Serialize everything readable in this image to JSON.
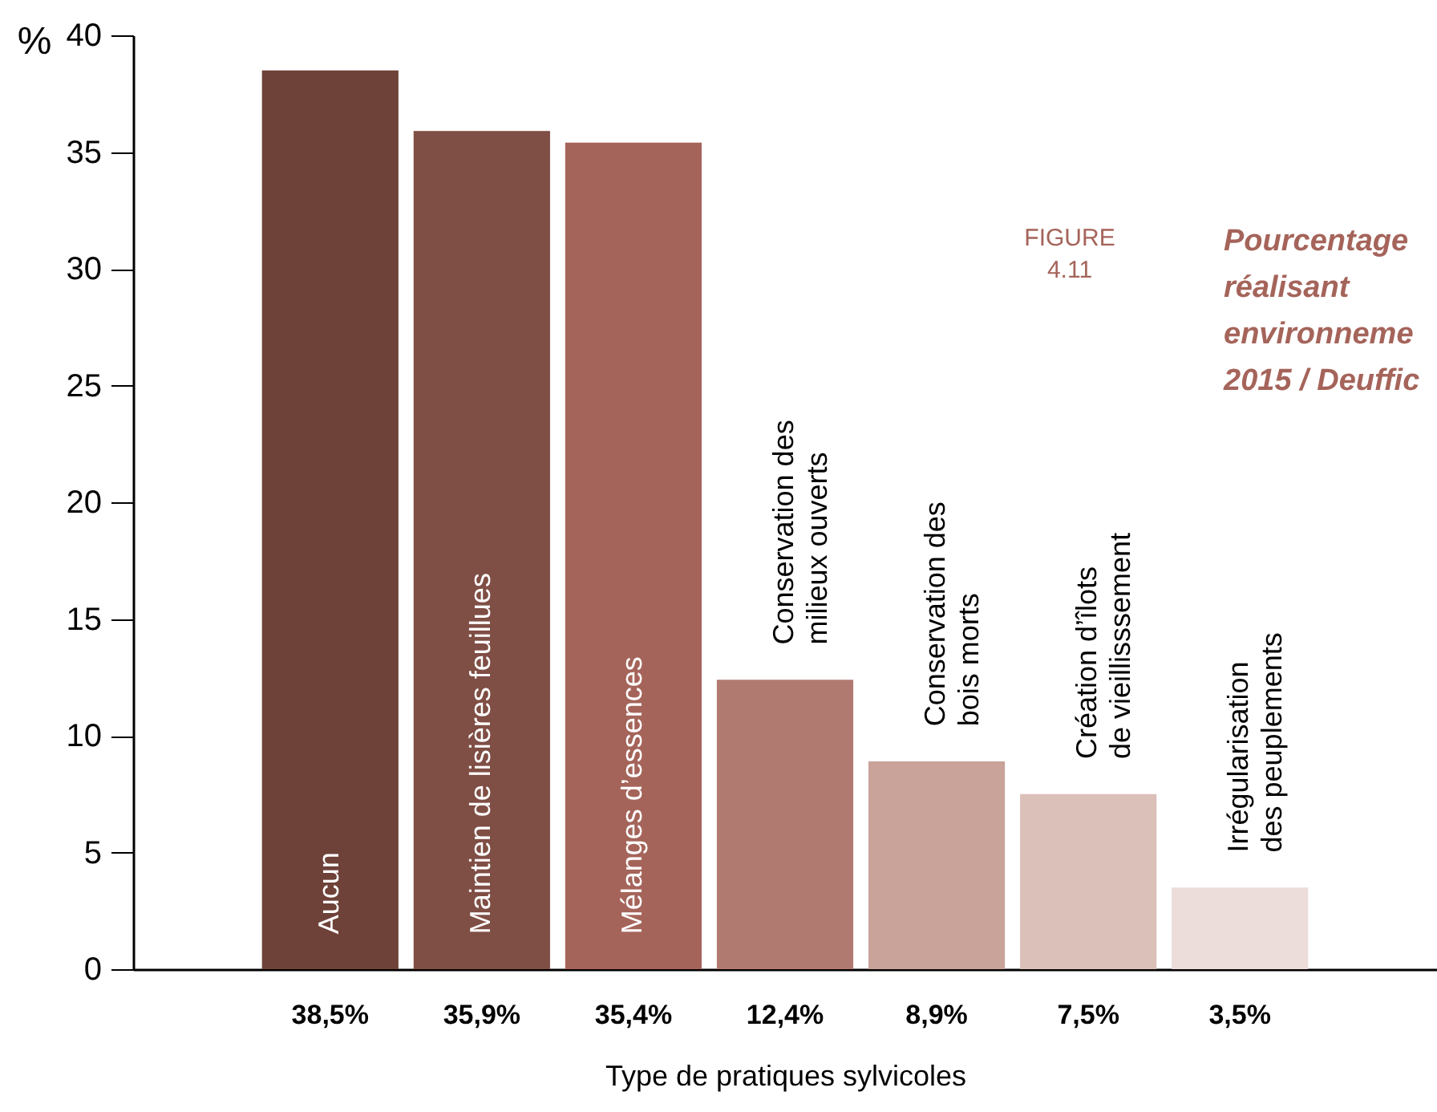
{
  "chart_data": {
    "type": "bar",
    "categories": [
      "Aucun",
      "Maintien de lisières feuillues",
      "Mélanges d’essences",
      "Conservation des\nmilieux ouverts",
      "Conservation des\nbois morts",
      "Création d’îlots\nde vieillisssement",
      "Irrégularisation\ndes peuplements"
    ],
    "values": [
      38.5,
      35.9,
      35.4,
      12.4,
      8.9,
      7.5,
      3.5
    ],
    "colors": [
      "#6e4238",
      "#7f4e44",
      "#a5645a",
      "#b17a70",
      "#c9a29a",
      "#dbbfb9",
      "#ecdcda"
    ],
    "value_labels": [
      "38,5%",
      "35,9%",
      "35,4%",
      "12,4%",
      "8,9%",
      "7,5%",
      "3,5%"
    ],
    "xlabel": "Type de pratiques sylvicoles",
    "ylabel": "%",
    "ylim": [
      0,
      40
    ],
    "yticks": [
      0,
      5,
      10,
      15,
      20,
      25,
      30,
      35,
      40
    ],
    "grid": false,
    "annotations": [
      "FIGURE 4.11",
      "Pourcentage",
      "réalisant",
      "environneme",
      "2015 / Deuffic"
    ]
  }
}
